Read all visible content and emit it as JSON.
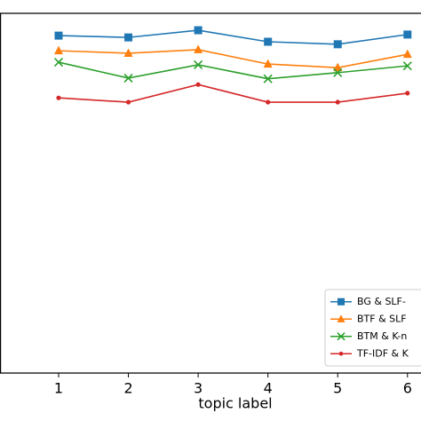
{
  "chart_data": {
    "type": "line",
    "xlabel": "topic label",
    "x": [
      1,
      2,
      3,
      4,
      5,
      6
    ],
    "xlim": [
      0.16,
      6.27
    ],
    "xticks": [
      1,
      2,
      3,
      4,
      5,
      6
    ],
    "ylim": [
      0,
      1
    ],
    "legend": "lower right",
    "series": [
      {
        "name": "BG & SLF-",
        "color": "#1f77b4",
        "marker": "square",
        "values": [
          0.938,
          0.933,
          0.953,
          0.921,
          0.914,
          0.941
        ]
      },
      {
        "name": "BTF & SLF",
        "color": "#ff7f0e",
        "marker": "triangle",
        "values": [
          0.896,
          0.889,
          0.899,
          0.859,
          0.849,
          0.886
        ]
      },
      {
        "name": "BTM & K-n",
        "color": "#2ca02c",
        "marker": "x",
        "values": [
          0.864,
          0.82,
          0.857,
          0.818,
          0.835,
          0.854
        ]
      },
      {
        "name": "TF-IDF & K",
        "color": "#d62728",
        "marker": "dot",
        "values": [
          0.765,
          0.753,
          0.802,
          0.753,
          0.753,
          0.778
        ]
      }
    ]
  }
}
